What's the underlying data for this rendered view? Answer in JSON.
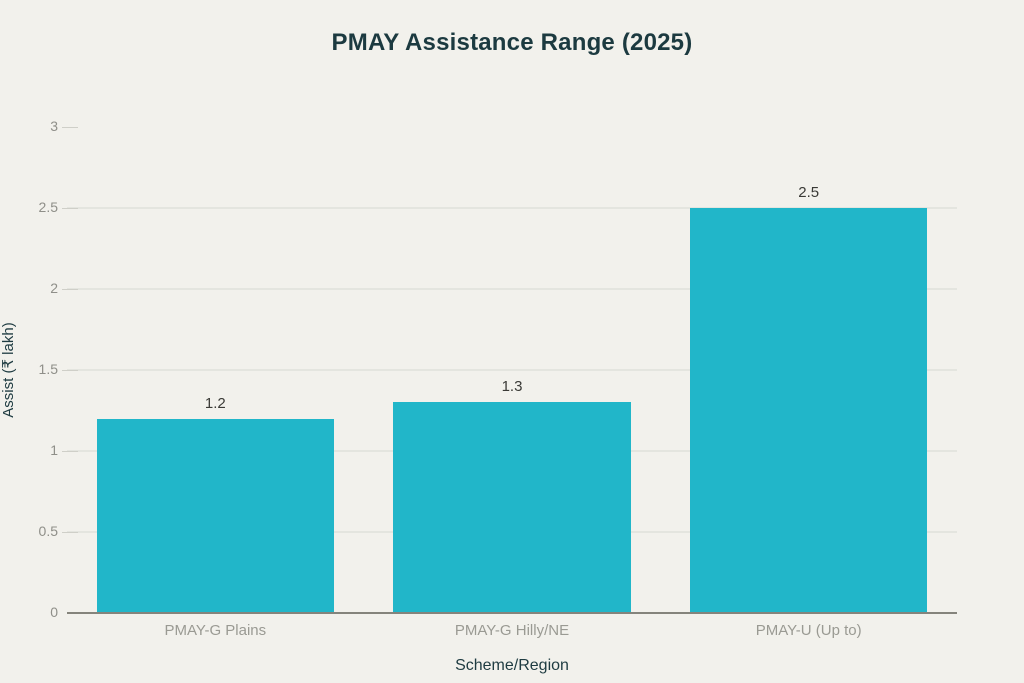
{
  "title": "PMAY Assistance Range (2025)",
  "colors": {
    "background": "#f2f1ec",
    "bar": "#21b6c9",
    "title_text": "#1c3a40",
    "axis_title_text": "#1e3b41",
    "ytick_label": "#8f8f89",
    "category_label": "#9a9a93",
    "data_label": "#3a3a36",
    "gridline": "#e4e5df",
    "tick_mark": "#cfcfc8",
    "axis_line": "#85847c"
  },
  "chart_data": {
    "type": "bar",
    "title": "PMAY Assistance Range (2025)",
    "categories": [
      "PMAY-G Plains",
      "PMAY-G Hilly/NE",
      "PMAY-U (Up to)"
    ],
    "values": [
      1.2,
      1.3,
      2.5
    ],
    "data_labels": [
      "1.2",
      "1.3",
      "2.5"
    ],
    "xlabel": "Scheme/Region",
    "ylabel": "Assist (₹ lakh)",
    "ylim": [
      0,
      3
    ],
    "yticks": [
      0,
      0.5,
      1,
      1.5,
      2,
      2.5,
      3
    ],
    "ytick_labels": [
      "0",
      "0.5",
      "1",
      "1.5",
      "2",
      "2.5",
      "3"
    ],
    "grid": "horizontal",
    "legend": "none",
    "bar_band_fraction": 0.8
  }
}
